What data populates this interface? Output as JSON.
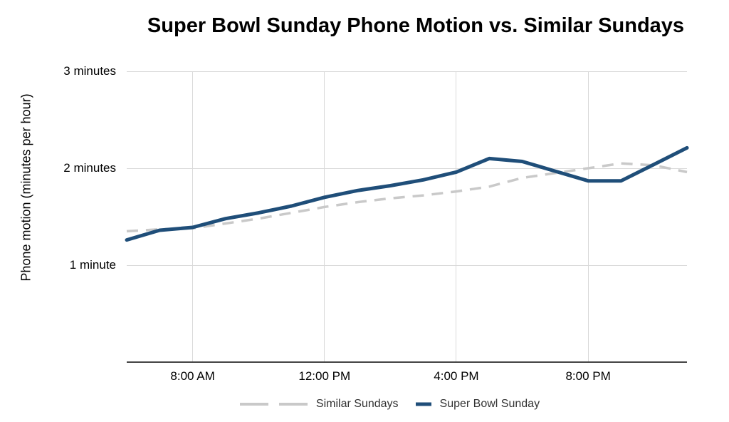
{
  "chart_data": {
    "type": "line",
    "title": "Super Bowl Sunday Phone Motion vs. Similar Sundays",
    "xlabel": "",
    "ylabel": "Phone motion (minutes per hour)",
    "ylim": [
      0,
      3
    ],
    "grid": true,
    "legend_position": "bottom",
    "x_hours": [
      6,
      7,
      8,
      9,
      10,
      11,
      12,
      13,
      14,
      15,
      16,
      17,
      18,
      19,
      20,
      21,
      22,
      23
    ],
    "x_tick_labels": [
      {
        "hour": 8,
        "label": "8:00 AM"
      },
      {
        "hour": 12,
        "label": "12:00 PM"
      },
      {
        "hour": 16,
        "label": "4:00 PM"
      },
      {
        "hour": 20,
        "label": "8:00 PM"
      }
    ],
    "y_tick_labels": [
      {
        "value": 1,
        "label": "1 minute"
      },
      {
        "value": 2,
        "label": "2 minutes"
      },
      {
        "value": 3,
        "label": "3 minutes"
      }
    ],
    "series": [
      {
        "key": "similar-sundays",
        "name": "Similar Sundays",
        "style": "dashed",
        "color": "#c9c9c9",
        "values": [
          1.35,
          1.37,
          1.38,
          1.43,
          1.48,
          1.54,
          1.6,
          1.65,
          1.69,
          1.72,
          1.76,
          1.81,
          1.9,
          1.95,
          2.0,
          2.05,
          2.03,
          1.96
        ]
      },
      {
        "key": "super-bowl-sunday",
        "name": "Super Bowl Sunday",
        "style": "solid",
        "color": "#1f4e79",
        "values": [
          1.26,
          1.36,
          1.39,
          1.48,
          1.54,
          1.61,
          1.7,
          1.77,
          1.82,
          1.88,
          1.96,
          2.1,
          2.07,
          1.97,
          1.87,
          1.87,
          2.04,
          2.21
        ]
      }
    ],
    "colors": {
      "background": "#ffffff",
      "gridline": "#d9d9d9",
      "axis": "#444444",
      "title_text": "#000000",
      "tick_text": "#000000",
      "legend_text": "#333333"
    }
  }
}
